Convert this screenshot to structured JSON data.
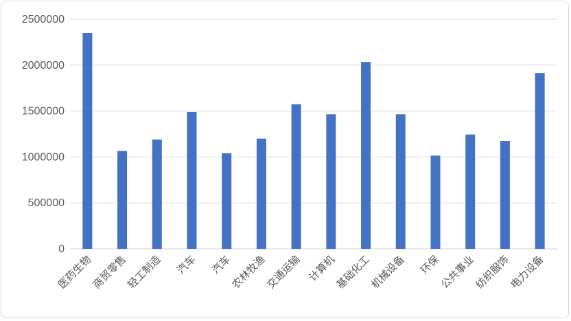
{
  "chart_data": {
    "type": "bar",
    "title": "",
    "xlabel": "",
    "ylabel": "",
    "categories": [
      "医药生物",
      "商贸零售",
      "轻工制造",
      "汽车",
      "汽车",
      "农林牧渔",
      "交通运输",
      "计算机",
      "基础化工",
      "机械设备",
      "环保",
      "公共事业",
      "纺织服饰",
      "电力设备"
    ],
    "series": [
      {
        "values": [
          2350000,
          1065000,
          1190000,
          1490000,
          1040000,
          1200000,
          1575000,
          1465000,
          2035000,
          1465000,
          1015000,
          1245000,
          1175000,
          1915000
        ],
        "color": "#4472C4"
      }
    ],
    "ylim": [
      0,
      2500000
    ],
    "yticks": [
      0,
      500000,
      1000000,
      1500000,
      2000000,
      2500000
    ],
    "ytick_labels": [
      "0",
      "500000",
      "1000000",
      "1500000",
      "2000000",
      "2500000"
    ],
    "grid": true,
    "legend": "none",
    "colors": {
      "bar": "#4472C4",
      "grid": "#d9d9d9",
      "text": "#595959"
    }
  }
}
